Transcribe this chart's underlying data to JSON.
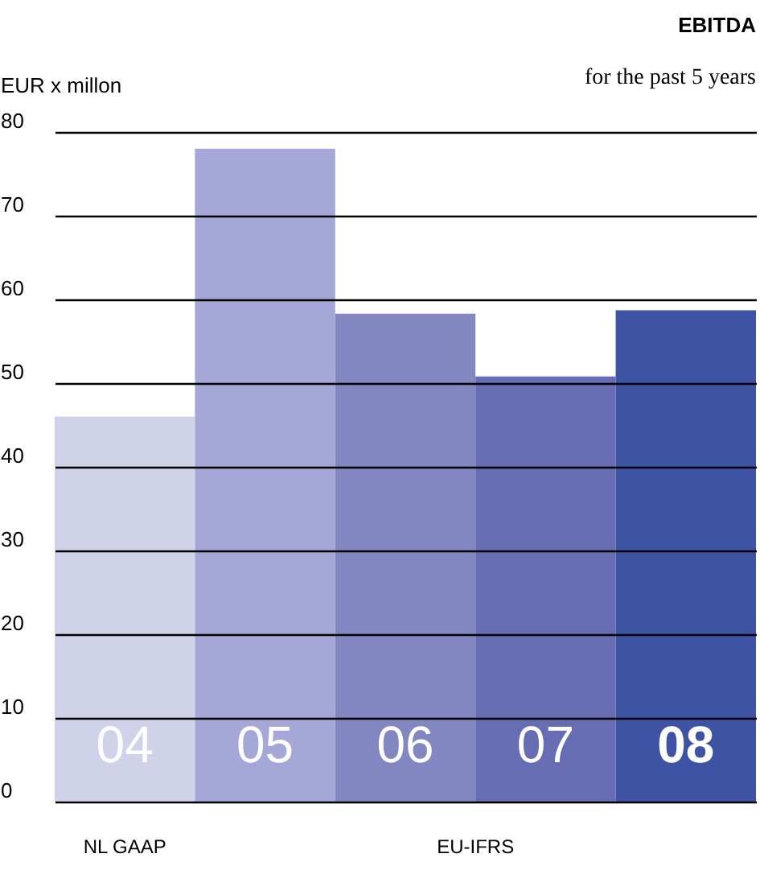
{
  "chart_data": {
    "type": "bar",
    "title": "EBITDA",
    "subtitle": "for the past 5 years",
    "ylabel": "EUR x millon",
    "categories": [
      "04",
      "05",
      "06",
      "07",
      "08"
    ],
    "values": [
      46,
      78,
      58.3,
      50.8,
      58.7
    ],
    "colors": [
      "#d0d2ea",
      "#a5a8d6",
      "#8286c1",
      "#666db2",
      "#3f53a4"
    ],
    "ylim": [
      0,
      80
    ],
    "yticks": [
      0,
      10,
      20,
      30,
      40,
      50,
      60,
      70,
      80
    ],
    "grid": "y",
    "annotations": [
      "NL GAAP",
      "EU-IFRS"
    ]
  }
}
